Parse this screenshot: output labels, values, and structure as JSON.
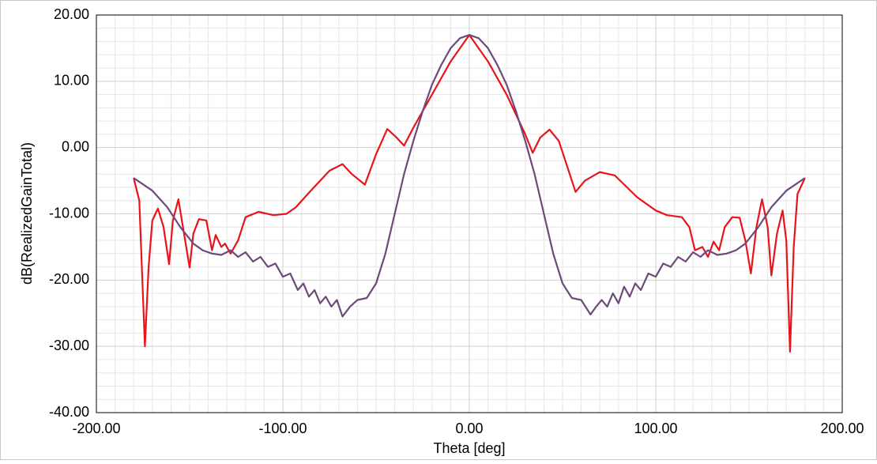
{
  "chart_data": {
    "type": "line",
    "xlabel": "Theta [deg]",
    "ylabel": "dB(RealizedGainTotal)",
    "xlim": [
      -200,
      200
    ],
    "ylim": [
      -40,
      20
    ],
    "xticks": [
      {
        "value": -200,
        "label": "-200.00"
      },
      {
        "value": -100,
        "label": "-100.00"
      },
      {
        "value": 0,
        "label": "0.00"
      },
      {
        "value": 100,
        "label": "100.00"
      },
      {
        "value": 200,
        "label": "200.00"
      }
    ],
    "yticks": [
      {
        "value": -40,
        "label": "-40.00"
      },
      {
        "value": -30,
        "label": "-30.00"
      },
      {
        "value": -20,
        "label": "-20.00"
      },
      {
        "value": -10,
        "label": "-10.00"
      },
      {
        "value": 0,
        "label": "0.00"
      },
      {
        "value": 10,
        "label": "10.00"
      },
      {
        "value": 20,
        "label": "20.00"
      }
    ],
    "grid": true,
    "minor_grid": {
      "x": 10,
      "y": 5
    },
    "series": [
      {
        "color": "#e8141b",
        "x": [
          -180,
          -177,
          -174,
          -172,
          -170,
          -167,
          -164,
          -161,
          -159,
          -156,
          -153,
          -150,
          -148,
          -145,
          -141,
          -138,
          -136,
          -133,
          -131,
          -128,
          -124,
          -120,
          -113,
          -105,
          -98,
          -93,
          -85,
          -75,
          -68,
          -63,
          -56,
          -50,
          -44,
          -39,
          -35,
          -30,
          -20,
          -10,
          0,
          10,
          20,
          30,
          34,
          38,
          43,
          48,
          57,
          62,
          70,
          78,
          90,
          100,
          106,
          114,
          118,
          121,
          125,
          128,
          131,
          134,
          137,
          141,
          145,
          148,
          151,
          154,
          157,
          160,
          162,
          165,
          168,
          170,
          172,
          174,
          176,
          180
        ],
        "values": [
          -4.6,
          -8,
          -30,
          -18,
          -11,
          -9.2,
          -12,
          -17.6,
          -11,
          -7.8,
          -13,
          -18.1,
          -13,
          -10.8,
          -11,
          -15.5,
          -13.2,
          -15,
          -14.5,
          -16,
          -14,
          -10.5,
          -9.7,
          -10.2,
          -10,
          -9,
          -6.5,
          -3.5,
          -2.5,
          -4,
          -5.6,
          -1,
          2.8,
          1.5,
          0.3,
          3,
          8,
          13,
          17,
          13,
          8,
          2,
          -0.8,
          1.5,
          2.7,
          1,
          -6.7,
          -5,
          -3.7,
          -4.2,
          -7.5,
          -9.5,
          -10.2,
          -10.5,
          -12,
          -15.5,
          -15,
          -16.5,
          -14.2,
          -15.5,
          -12,
          -10.5,
          -10.6,
          -14,
          -19,
          -12,
          -7.8,
          -12,
          -19.3,
          -13,
          -9.5,
          -14,
          -30.8,
          -15,
          -7,
          -4.6
        ]
      },
      {
        "color": "#6e4a7a",
        "x": [
          -180,
          -170,
          -162,
          -155,
          -148,
          -143,
          -138,
          -133,
          -128,
          -124,
          -120,
          -116,
          -112,
          -108,
          -104,
          -100,
          -96,
          -92,
          -89,
          -86,
          -83,
          -80,
          -77,
          -74,
          -71,
          -68,
          -64,
          -60,
          -55,
          -50,
          -45,
          -40,
          -35,
          -30,
          -25,
          -20,
          -15,
          -10,
          -5,
          0,
          5,
          10,
          15,
          20,
          25,
          30,
          35,
          40,
          45,
          50,
          55,
          60,
          65,
          68,
          71,
          74,
          77,
          80,
          83,
          86,
          89,
          92,
          96,
          100,
          104,
          108,
          112,
          116,
          120,
          124,
          128,
          133,
          138,
          143,
          148,
          155,
          162,
          170,
          180
        ],
        "values": [
          -4.6,
          -6.5,
          -9,
          -12,
          -14.5,
          -15.5,
          -16,
          -16.2,
          -15.5,
          -16.5,
          -15.8,
          -17.2,
          -16.5,
          -18,
          -17.5,
          -19.5,
          -19,
          -21.5,
          -20.5,
          -22.5,
          -21.5,
          -23.5,
          -22.5,
          -24,
          -23,
          -25.5,
          -24,
          -23,
          -22.7,
          -20.5,
          -16,
          -10,
          -4,
          1,
          5.5,
          9.5,
          12.5,
          15,
          16.5,
          17,
          16.5,
          15,
          12.5,
          9.5,
          5.5,
          1,
          -4,
          -10,
          -16,
          -20.5,
          -22.7,
          -23,
          -25.2,
          -24,
          -23,
          -24,
          -22,
          -23.5,
          -21,
          -22.5,
          -20.5,
          -21.5,
          -19,
          -19.5,
          -17.5,
          -18,
          -16.5,
          -17.2,
          -15.8,
          -16.5,
          -15.5,
          -16.2,
          -16,
          -15.5,
          -14.5,
          -12,
          -9,
          -6.5,
          -4.6
        ]
      }
    ]
  }
}
